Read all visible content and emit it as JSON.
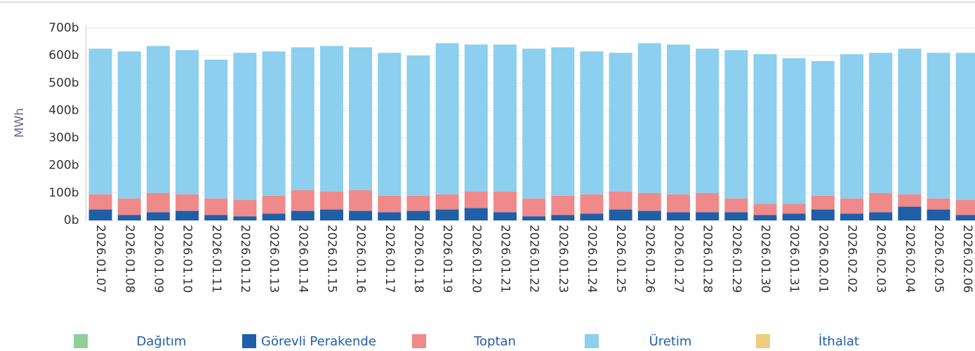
{
  "chart_data": {
    "type": "stacked_bar",
    "y_axis_label": "MWh",
    "categories": [
      "2026.01.07",
      "2026.01.08",
      "2026.01.09",
      "2026.01.10",
      "2026.01.11",
      "2026.01.12",
      "2026.01.13",
      "2026.01.14",
      "2026.01.15",
      "2026.01.16",
      "2026.01.17",
      "2026.01.18",
      "2026.01.19",
      "2026.01.20",
      "2026.01.21",
      "2026.01.22",
      "2026.01.23",
      "2026.01.24",
      "2026.01.25",
      "2026.01.26",
      "2026.01.27",
      "2026.01.28",
      "2026.01.29",
      "2026.01.30",
      "2026.01.31",
      "2026.02.01",
      "2026.02.02",
      "2026.02.03",
      "2026.02.04",
      "2026.02.05",
      "2026.02.06"
    ],
    "series": [
      {
        "name": "Dağıtım",
        "color": "#8fcf9a",
        "values": [
          0,
          0,
          0,
          0,
          0,
          0,
          0,
          0,
          0,
          0,
          0,
          0,
          0,
          0,
          0,
          0,
          0,
          0,
          0,
          0,
          0,
          0,
          0,
          0,
          0,
          0,
          0,
          0,
          0,
          0,
          0
        ]
      },
      {
        "name": "Görevli Perakende",
        "color": "#1f5fa8",
        "values": [
          40000,
          20000,
          30000,
          35000,
          20000,
          15000,
          25000,
          35000,
          40000,
          35000,
          30000,
          35000,
          40000,
          45000,
          30000,
          15000,
          20000,
          25000,
          40000,
          35000,
          30000,
          30000,
          30000,
          20000,
          25000,
          40000,
          25000,
          30000,
          50000,
          40000,
          20000
        ]
      },
      {
        "name": "Toptan",
        "color": "#f08a8a",
        "values": [
          55000,
          60000,
          70000,
          60000,
          60000,
          60000,
          65000,
          75000,
          65000,
          75000,
          60000,
          55000,
          55000,
          60000,
          75000,
          65000,
          70000,
          70000,
          65000,
          65000,
          65000,
          70000,
          50000,
          40000,
          35000,
          50000,
          55000,
          70000,
          45000,
          40000,
          55000
        ]
      },
      {
        "name": "Üretim",
        "color": "#8ccfee",
        "values": [
          530000,
          535000,
          535000,
          525000,
          505000,
          535000,
          525000,
          520000,
          530000,
          520000,
          520000,
          510000,
          550000,
          535000,
          535000,
          545000,
          540000,
          520000,
          505000,
          545000,
          545000,
          525000,
          540000,
          545000,
          530000,
          490000,
          525000,
          510000,
          530000,
          530000,
          535000
        ]
      },
      {
        "name": "İthalat",
        "color": "#f0cc80",
        "values": [
          0,
          0,
          0,
          0,
          0,
          0,
          0,
          0,
          0,
          0,
          0,
          0,
          0,
          0,
          0,
          0,
          0,
          0,
          0,
          0,
          0,
          0,
          0,
          0,
          0,
          0,
          0,
          0,
          0,
          0,
          0
        ]
      }
    ],
    "ylim": [
      0,
      700000
    ],
    "yticks": [
      {
        "value": 0,
        "label": "0b"
      },
      {
        "value": 100000,
        "label": "100b"
      },
      {
        "value": 200000,
        "label": "200b"
      },
      {
        "value": 300000,
        "label": "300b"
      },
      {
        "value": 400000,
        "label": "400b"
      },
      {
        "value": 500000,
        "label": "500b"
      },
      {
        "value": 600000,
        "label": "600b"
      },
      {
        "value": 700000,
        "label": "700b"
      }
    ],
    "grid": true,
    "legend": "bottom"
  }
}
